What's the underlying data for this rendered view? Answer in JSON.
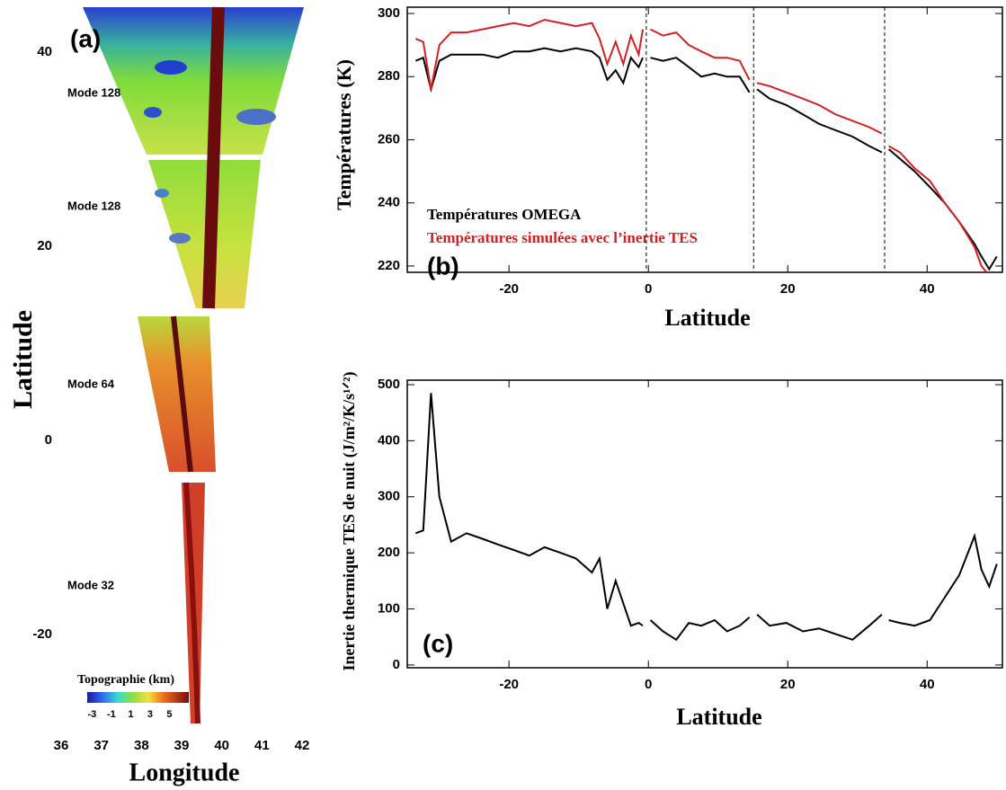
{
  "chart_data": [
    {
      "type": "map",
      "panel": "(a)",
      "xlabel": "Longitude",
      "ylabel": "Latitude",
      "xlim": [
        36,
        42
      ],
      "xticks": [
        36,
        37,
        38,
        39,
        40,
        41,
        42
      ],
      "ylim": [
        -20,
        40
      ],
      "yticks": [
        -20,
        0,
        20,
        40
      ],
      "annotations": [
        "Mode 128",
        "Mode 128",
        "Mode 64",
        "Mode 32"
      ],
      "colorbar": {
        "label": "Topographie (km)",
        "lim": [
          -3.5,
          7
        ],
        "ticks": [
          -3,
          -1,
          1,
          3,
          5
        ]
      }
    },
    {
      "type": "line",
      "panel": "(b)",
      "xlabel": "Latitude",
      "ylabel": "Températures (K)",
      "xlim": [
        -34.6,
        50.8
      ],
      "xticks": [
        -20,
        0,
        20,
        40
      ],
      "ylim": [
        218,
        302
      ],
      "yticks": [
        220,
        240,
        260,
        280,
        300
      ],
      "vlines": [
        -0.3,
        15.1,
        33.9
      ],
      "x": [
        -33.4,
        -32.3,
        -31.2,
        -30.0,
        -28.3,
        -26.1,
        -23.8,
        -21.6,
        -19.3,
        -17.1,
        -14.9,
        -12.6,
        -10.4,
        -8.1,
        -7.0,
        -5.9,
        -4.7,
        -3.6,
        -2.5,
        -1.4,
        -0.8,
        -0.3,
        0.3,
        2.1,
        4.0,
        5.8,
        7.6,
        9.5,
        11.3,
        13.1,
        14.5,
        15.1,
        15.6,
        17.4,
        19.8,
        22.2,
        24.5,
        26.9,
        29.3,
        31.7,
        33.5,
        34.0,
        34.5,
        36.1,
        38.2,
        40.4,
        42.5,
        44.6,
        46.8,
        47.8,
        48.9,
        50.0
      ],
      "series": [
        {
          "name": "Températures OMEGA",
          "color": "#000000",
          "values": [
            285,
            286,
            276,
            285,
            287,
            287,
            287,
            286,
            288,
            288,
            289,
            288,
            289,
            288,
            286,
            279,
            282,
            278,
            286,
            283,
            286,
            null,
            286,
            285,
            286,
            283,
            280,
            281,
            280,
            280,
            275,
            null,
            276,
            273,
            271,
            268,
            265,
            263,
            261,
            258,
            256,
            null,
            257,
            254,
            250,
            245,
            240,
            234,
            227,
            223,
            219,
            223
          ]
        },
        {
          "name": "Températures simulées avec l’inertie TES",
          "color": "#d42020",
          "values": [
            292,
            291,
            276,
            290,
            294,
            294,
            295,
            296,
            297,
            296,
            298,
            297,
            296,
            297,
            292,
            284,
            291,
            284,
            293,
            287,
            295,
            null,
            295,
            293,
            294,
            290,
            288,
            286,
            286,
            285,
            279,
            null,
            278,
            277,
            275,
            273,
            271,
            268,
            266,
            264,
            262,
            null,
            258,
            256,
            251,
            247,
            240,
            234,
            226,
            220,
            217,
            217
          ]
        }
      ]
    },
    {
      "type": "line",
      "panel": "(c)",
      "xlabel": "Latitude",
      "ylabel": "Inertie thermique TES de nuit (J/m²/K/s¹ᐟ²)",
      "xlim": [
        -34.6,
        50.8
      ],
      "xticks": [
        -20,
        0,
        20,
        40
      ],
      "ylim": [
        -5,
        508
      ],
      "yticks": [
        0,
        100,
        200,
        300,
        400,
        500
      ],
      "x": [
        -33.4,
        -32.3,
        -31.2,
        -30.0,
        -28.3,
        -26.1,
        -23.8,
        -21.6,
        -19.3,
        -17.1,
        -14.9,
        -12.6,
        -10.4,
        -8.1,
        -7.0,
        -5.9,
        -4.7,
        -3.6,
        -2.5,
        -1.4,
        -0.8,
        -0.3,
        0.3,
        2.1,
        4.0,
        5.8,
        7.6,
        9.5,
        11.3,
        13.1,
        14.5,
        15.1,
        15.6,
        17.4,
        19.8,
        22.2,
        24.5,
        26.9,
        29.3,
        31.7,
        33.5,
        34.0,
        34.5,
        36.1,
        38.2,
        40.4,
        42.5,
        44.6,
        46.8,
        47.8,
        48.9,
        50.0
      ],
      "series": [
        {
          "name": "Inertie TES",
          "color": "#000000",
          "values": [
            235,
            240,
            485,
            300,
            220,
            235,
            225,
            215,
            205,
            195,
            210,
            200,
            190,
            165,
            190,
            100,
            150,
            110,
            70,
            75,
            70,
            null,
            80,
            60,
            45,
            75,
            70,
            80,
            60,
            70,
            85,
            null,
            90,
            70,
            75,
            60,
            65,
            55,
            45,
            70,
            90,
            null,
            80,
            75,
            70,
            80,
            120,
            160,
            230,
            170,
            140,
            180
          ]
        }
      ]
    }
  ]
}
